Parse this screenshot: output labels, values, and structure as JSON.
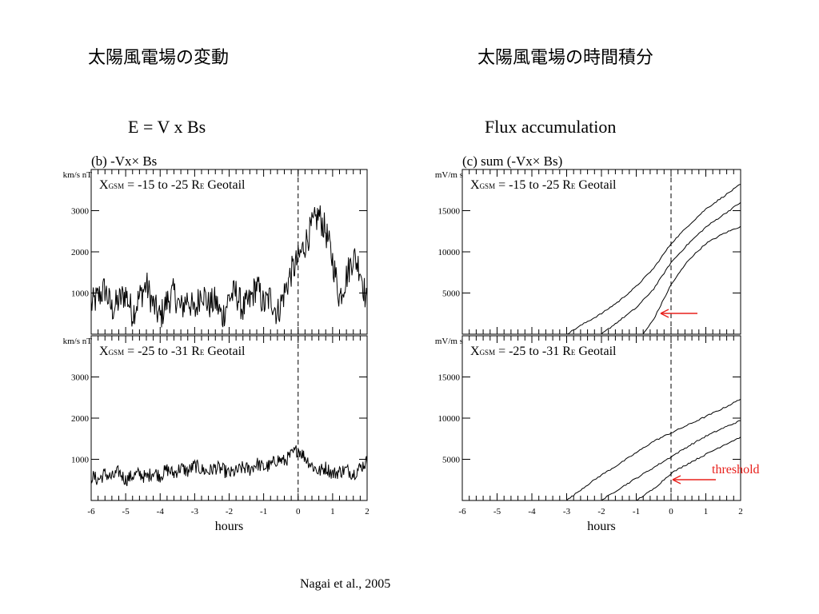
{
  "header": {
    "left_title": "太陽風電場の変動",
    "right_title": "太陽風電場の時間積分",
    "left_formula": "E =  V x Bs",
    "right_formula": "Flux accumulation"
  },
  "citation": "Nagai et al., 2005",
  "annotation": {
    "threshold_label": "threshold",
    "arrow_color": "#e8201c"
  },
  "chart_data": [
    {
      "id": "b-top",
      "type": "line",
      "panel_label": "(b) -Vx× Bs",
      "ylabel": "km/s nT",
      "region_label": "X_GSM = -15 to -25 R_E   Geotail",
      "region_parts": {
        "x": "X",
        "sub": "GSM",
        "mid": " = -15 to -25 R",
        "esub": "E",
        "tail": "   Geotail"
      },
      "xlim": [
        -6,
        2
      ],
      "ylim": [
        0,
        4000
      ],
      "yticks": [
        1000,
        2000,
        3000
      ],
      "series": [
        {
          "values_sampled_every_0.2h": [
            700,
            900,
            1100,
            600,
            800,
            1000,
            500,
            900,
            1200,
            700,
            400,
            800,
            1000,
            600,
            900,
            500,
            1100,
            700,
            800,
            400,
            900,
            1000,
            600,
            800,
            1200,
            700,
            900,
            500,
            1000,
            1500,
            1800,
            2200,
            2600,
            2900,
            2500,
            1800,
            900,
            1400,
            1900,
            1600,
            700
          ]
        }
      ]
    },
    {
      "id": "b-bottom",
      "type": "line",
      "ylabel": "km/s nT",
      "region_label": "X_GSM = -25 to -31 R_E   Geotail",
      "region_parts": {
        "x": "X",
        "sub": "GSM",
        "mid": " = -25 to -31 R",
        "esub": "E",
        "tail": "   Geotail"
      },
      "xlim": [
        -6,
        2
      ],
      "ylim": [
        0,
        4000
      ],
      "yticks": [
        1000,
        2000,
        3000
      ],
      "xticks": [
        -6,
        -5,
        -4,
        -3,
        -2,
        -1,
        0,
        1,
        2
      ],
      "xlabel": "hours",
      "series": [
        {
          "values_sampled_every_0.2h": [
            600,
            500,
            650,
            550,
            700,
            500,
            600,
            650,
            550,
            700,
            600,
            750,
            650,
            800,
            700,
            850,
            750,
            700,
            800,
            750,
            650,
            700,
            800,
            750,
            900,
            800,
            850,
            1000,
            950,
            1100,
            1250,
            1050,
            850,
            700,
            800,
            650,
            700,
            750,
            650,
            800,
            950
          ]
        }
      ]
    },
    {
      "id": "c-top",
      "type": "line",
      "panel_label": "(c) sum (-Vx× Bs)",
      "ylabel": "mV/m s",
      "region_label": "X_GSM = -15 to -25 R_E   Geotail",
      "region_parts": {
        "x": "X",
        "sub": "GSM",
        "mid": " = -15 to -25 R",
        "esub": "E",
        "tail": "   Geotail"
      },
      "xlim": [
        -6,
        2
      ],
      "ylim": [
        0,
        20000
      ],
      "yticks": [
        5000,
        10000,
        15000
      ],
      "series": [
        {
          "x": [
            -3,
            -2.5,
            -2,
            -1.5,
            -1,
            -0.5,
            0,
            0.5,
            1,
            1.5,
            2
          ],
          "y": [
            0,
            1300,
            2500,
            4000,
            5800,
            8000,
            11000,
            13200,
            15200,
            16700,
            18200
          ]
        },
        {
          "x": [
            -2,
            -1.5,
            -1,
            -0.5,
            0,
            0.5,
            1,
            1.5,
            2
          ],
          "y": [
            0,
            1600,
            3200,
            5500,
            8700,
            11000,
            13000,
            14500,
            16000
          ]
        },
        {
          "x": [
            -0.8,
            -0.5,
            0,
            0.5,
            1,
            1.5,
            2
          ],
          "y": [
            0,
            1800,
            6000,
            9000,
            11000,
            12200,
            13100
          ]
        }
      ]
    },
    {
      "id": "c-bottom",
      "type": "line",
      "ylabel": "mV/m s",
      "region_label": "X_GSM = -25 to -31 R_E   Geotail",
      "region_parts": {
        "x": "X",
        "sub": "GSM",
        "mid": " = -25 to -31 R",
        "esub": "E",
        "tail": "   Geotail"
      },
      "xlim": [
        -6,
        2
      ],
      "ylim": [
        0,
        20000
      ],
      "yticks": [
        5000,
        10000,
        15000
      ],
      "xticks": [
        -6,
        -5,
        -4,
        -3,
        -2,
        -1,
        0,
        1,
        2
      ],
      "xlabel": "hours",
      "series": [
        {
          "x": [
            -3,
            -2.5,
            -2,
            -1.5,
            -1,
            -0.5,
            0,
            0.5,
            1,
            1.5,
            2
          ],
          "y": [
            0,
            1600,
            3100,
            4400,
            5800,
            7200,
            8200,
            9200,
            10200,
            11200,
            12300
          ]
        },
        {
          "x": [
            -2,
            -1.5,
            -1,
            -0.5,
            0,
            0.5,
            1,
            1.5,
            2
          ],
          "y": [
            0,
            1400,
            2700,
            4000,
            5300,
            6600,
            7800,
            8800,
            9700
          ]
        },
        {
          "x": [
            -1,
            -0.5,
            0,
            0.5,
            1,
            1.5,
            2
          ],
          "y": [
            0,
            1400,
            3300,
            4500,
            5600,
            6700,
            7700
          ]
        }
      ]
    }
  ]
}
